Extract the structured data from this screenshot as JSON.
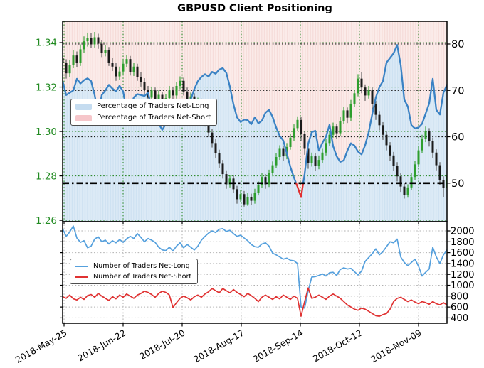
{
  "title": "GBPUSD Client Positioning",
  "colors": {
    "price_axis_green": "#228b22",
    "grid_green": "#2e8b2e",
    "grid_black": "#1a1a1a",
    "grid_gray": "#b0b0b0",
    "candle_up": "#2e9e2e",
    "candle_down": "#1b1b1b",
    "candle_down_wick": "#555555",
    "pct_line_blue": "#3a82c4",
    "pct_line_below50_red": "#e03030",
    "net_long_fill": "#dceaf6",
    "net_long_fill_stripe": "#cde1f1",
    "net_short_fill": "#fbebe9",
    "net_short_fill_stripe": "#f5dbd8",
    "count_long_line": "#55a0dd",
    "count_short_line": "#e03232",
    "threshold_line": "#000000"
  },
  "top_legend": {
    "items": [
      {
        "label": "Percentage of Traders Net-Long",
        "swatch_color": "#c5dcf0"
      },
      {
        "label": "Percentage of Traders Net-Short",
        "swatch_color": "#f6c6ca"
      }
    ]
  },
  "bottom_legend": {
    "items": [
      {
        "label": "Number of Traders Net-Long",
        "line_color": "#55a0dd"
      },
      {
        "label": "Number of Traders Net-Short",
        "line_color": "#e03232"
      }
    ]
  },
  "chart_data": {
    "type": "mixed",
    "x_axis": {
      "tick_labels": [
        "2018-May-25",
        "2018-Jun-22",
        "2018-Jul-20",
        "2018-Aug-17",
        "2018-Sep-14",
        "2018-Oct-12",
        "2018-Nov-09"
      ],
      "tick_positions": [
        0.0037,
        0.1574,
        0.3111,
        0.4648,
        0.6185,
        0.7722,
        0.9259
      ]
    },
    "top_panel": {
      "type": "candlestick_with_line",
      "price_axis": {
        "side": "left",
        "tick_labels": [
          "1.34",
          "1.32",
          "1.30",
          "1.28",
          "1.26"
        ],
        "tick_values": [
          1.34,
          1.32,
          1.3,
          1.28,
          1.26
        ],
        "range": [
          1.2594,
          1.3496
        ]
      },
      "pct_axis": {
        "side": "right",
        "tick_labels": [
          "80",
          "70",
          "60",
          "50"
        ],
        "tick_values": [
          80,
          70,
          60,
          50
        ],
        "range": [
          41.7,
          84.9
        ]
      },
      "threshold": 50,
      "candles": [
        [
          1.3332,
          1.3352,
          1.3282,
          1.3308
        ],
        [
          1.3308,
          1.3325,
          1.3238,
          1.3262
        ],
        [
          1.3262,
          1.3322,
          1.3245,
          1.33
        ],
        [
          1.33,
          1.3368,
          1.3285,
          1.3342
        ],
        [
          1.3342,
          1.336,
          1.3288,
          1.331
        ],
        [
          1.331,
          1.3392,
          1.3295,
          1.337
        ],
        [
          1.337,
          1.3428,
          1.3355,
          1.3406
        ],
        [
          1.3406,
          1.3445,
          1.3382,
          1.342
        ],
        [
          1.342,
          1.3442,
          1.3375,
          1.3392
        ],
        [
          1.3392,
          1.3448,
          1.3378,
          1.3424
        ],
        [
          1.3424,
          1.344,
          1.3372,
          1.3395
        ],
        [
          1.3395,
          1.3412,
          1.3335,
          1.3352
        ],
        [
          1.3352,
          1.339,
          1.3338,
          1.3368
        ],
        [
          1.3368,
          1.338,
          1.3295,
          1.331
        ],
        [
          1.331,
          1.3332,
          1.3272,
          1.3292
        ],
        [
          1.3292,
          1.3308,
          1.3228,
          1.3248
        ],
        [
          1.3248,
          1.3292,
          1.3232,
          1.327
        ],
        [
          1.327,
          1.3325,
          1.3255,
          1.3305
        ],
        [
          1.3305,
          1.3345,
          1.329,
          1.3326
        ],
        [
          1.3326,
          1.334,
          1.3252,
          1.3268
        ],
        [
          1.3268,
          1.331,
          1.325,
          1.3292
        ],
        [
          1.3292,
          1.3305,
          1.3228,
          1.3245
        ],
        [
          1.3245,
          1.3268,
          1.3202,
          1.3222
        ],
        [
          1.3222,
          1.324,
          1.3168,
          1.3188
        ],
        [
          1.3188,
          1.3205,
          1.3132,
          1.3152
        ],
        [
          1.3152,
          1.3202,
          1.3138,
          1.3185
        ],
        [
          1.3185,
          1.3198,
          1.312,
          1.314
        ],
        [
          1.314,
          1.3185,
          1.3125,
          1.3165
        ],
        [
          1.3165,
          1.3178,
          1.3098,
          1.312
        ],
        [
          1.312,
          1.3168,
          1.3105,
          1.315
        ],
        [
          1.315,
          1.3205,
          1.3135,
          1.3185
        ],
        [
          1.3185,
          1.3202,
          1.3142,
          1.3162
        ],
        [
          1.3162,
          1.3222,
          1.3148,
          1.3205
        ],
        [
          1.3205,
          1.3248,
          1.319,
          1.3228
        ],
        [
          1.3228,
          1.3242,
          1.3162,
          1.318
        ],
        [
          1.318,
          1.3198,
          1.3112,
          1.3132
        ],
        [
          1.3132,
          1.3175,
          1.3118,
          1.3158
        ],
        [
          1.3158,
          1.3172,
          1.3088,
          1.3108
        ],
        [
          1.3108,
          1.3152,
          1.3092,
          1.3135
        ],
        [
          1.3135,
          1.3148,
          1.3068,
          1.3088
        ],
        [
          1.3088,
          1.3102,
          1.3022,
          1.3042
        ],
        [
          1.3042,
          1.3058,
          1.2975,
          1.2995
        ],
        [
          1.2995,
          1.3012,
          1.2928,
          1.2948
        ],
        [
          1.2948,
          1.2965,
          1.2882,
          1.2902
        ],
        [
          1.2902,
          1.2918,
          1.2835,
          1.2855
        ],
        [
          1.2855,
          1.2872,
          1.2788,
          1.2808
        ],
        [
          1.2808,
          1.2825,
          1.2742,
          1.2762
        ],
        [
          1.2762,
          1.2805,
          1.2748,
          1.2788
        ],
        [
          1.2788,
          1.2802,
          1.2722,
          1.274
        ],
        [
          1.274,
          1.2755,
          1.2675,
          1.2695
        ],
        [
          1.2695,
          1.2738,
          1.2682,
          1.2718
        ],
        [
          1.2718,
          1.2732,
          1.2662,
          1.2672
        ],
        [
          1.2672,
          1.2722,
          1.2665,
          1.2706
        ],
        [
          1.2706,
          1.272,
          1.2668,
          1.2688
        ],
        [
          1.2688,
          1.2742,
          1.2675,
          1.2725
        ],
        [
          1.2725,
          1.2775,
          1.2712,
          1.2758
        ],
        [
          1.2758,
          1.2812,
          1.2745,
          1.2795
        ],
        [
          1.2795,
          1.2808,
          1.2742,
          1.2762
        ],
        [
          1.2762,
          1.2828,
          1.275,
          1.2812
        ],
        [
          1.2812,
          1.2865,
          1.2798,
          1.2848
        ],
        [
          1.2848,
          1.2902,
          1.2835,
          1.2885
        ],
        [
          1.2885,
          1.2938,
          1.2872,
          1.2922
        ],
        [
          1.2922,
          1.2935,
          1.2868,
          1.2888
        ],
        [
          1.2888,
          1.2948,
          1.2875,
          1.293
        ],
        [
          1.293,
          1.2988,
          1.2918,
          1.2972
        ],
        [
          1.2972,
          1.3032,
          1.2958,
          1.3015
        ],
        [
          1.3015,
          1.3068,
          1.3002,
          1.3052
        ],
        [
          1.3052,
          1.3065,
          1.2958,
          1.2988
        ],
        [
          1.2988,
          1.3002,
          1.2895,
          1.2922
        ],
        [
          1.2922,
          1.2938,
          1.2832,
          1.2858
        ],
        [
          1.2858,
          1.2905,
          1.2842,
          1.2888
        ],
        [
          1.2888,
          1.2902,
          1.2822,
          1.2846
        ],
        [
          1.2846,
          1.2892,
          1.283,
          1.2872
        ],
        [
          1.2872,
          1.2922,
          1.2858,
          1.2905
        ],
        [
          1.2905,
          1.2965,
          1.2892,
          1.2948
        ],
        [
          1.2948,
          1.3002,
          1.2935,
          1.2985
        ],
        [
          1.2985,
          1.304,
          1.2972,
          1.3022
        ],
        [
          1.3022,
          1.3035,
          1.2968,
          1.2992
        ],
        [
          1.2992,
          1.3065,
          1.298,
          1.3048
        ],
        [
          1.3048,
          1.3112,
          1.3035,
          1.3095
        ],
        [
          1.3095,
          1.3108,
          1.3038,
          1.3062
        ],
        [
          1.3062,
          1.3142,
          1.3048,
          1.3125
        ],
        [
          1.3125,
          1.3188,
          1.3112,
          1.3172
        ],
        [
          1.3172,
          1.3258,
          1.3158,
          1.3238
        ],
        [
          1.3238,
          1.3266,
          1.3172,
          1.3198
        ],
        [
          1.3198,
          1.3212,
          1.3138,
          1.3162
        ],
        [
          1.3162,
          1.3205,
          1.3148,
          1.3185
        ],
        [
          1.3185,
          1.3198,
          1.3098,
          1.3122
        ],
        [
          1.3122,
          1.3138,
          1.3052,
          1.3075
        ],
        [
          1.3075,
          1.3092,
          1.3005,
          1.3028
        ],
        [
          1.3028,
          1.3042,
          1.2962,
          1.2985
        ],
        [
          1.2985,
          1.3,
          1.2915,
          1.2938
        ],
        [
          1.2938,
          1.2952,
          1.2868,
          1.2892
        ],
        [
          1.2892,
          1.2908,
          1.2822,
          1.2845
        ],
        [
          1.2845,
          1.2862,
          1.2775,
          1.2798
        ],
        [
          1.2798,
          1.2812,
          1.2728,
          1.2752
        ],
        [
          1.2752,
          1.2768,
          1.2698,
          1.2715
        ],
        [
          1.2715,
          1.2762,
          1.2702,
          1.2748
        ],
        [
          1.2748,
          1.2812,
          1.2735,
          1.2795
        ],
        [
          1.2795,
          1.2868,
          1.2782,
          1.2852
        ],
        [
          1.2852,
          1.2932,
          1.284,
          1.2915
        ],
        [
          1.2915,
          1.2985,
          1.2902,
          1.2968
        ],
        [
          1.2968,
          1.3022,
          1.2952,
          1.3002
        ],
        [
          1.3002,
          1.3015,
          1.2932,
          1.2958
        ],
        [
          1.2958,
          1.2972,
          1.2882,
          1.2905
        ],
        [
          1.2905,
          1.292,
          1.2825,
          1.2848
        ],
        [
          1.2848,
          1.2862,
          1.2758,
          1.2782
        ],
        [
          1.2782,
          1.2798,
          1.2705,
          1.2745
        ],
        [
          1.2745,
          1.2825,
          1.2728,
          1.2802
        ]
      ],
      "pct_net_long": [
        72,
        69,
        69.5,
        70,
        72.5,
        71.5,
        72.2,
        72.6,
        72,
        69,
        64.8,
        69,
        70,
        71.2,
        70.4,
        69.8,
        71,
        69.8,
        65.5,
        66,
        68.5,
        69.2,
        69,
        68.8,
        69.5,
        66.5,
        64.5,
        62.8,
        61.5,
        62.8,
        64.5,
        66,
        64.5,
        64.8,
        64.6,
        65.8,
        68,
        70.3,
        72,
        72.9,
        73.5,
        73,
        74,
        73.6,
        74.5,
        74.8,
        73.8,
        70.8,
        67,
        64.2,
        63.2,
        63.7,
        63.6,
        62.7,
        64.2,
        62.9,
        63.5,
        65.2,
        65.8,
        64.3,
        62,
        60.2,
        59.2,
        56.4,
        53.5,
        51.2,
        49.2,
        47,
        52,
        58.5,
        61,
        61.3,
        57,
        58.7,
        60,
        62.6,
        58,
        55.8,
        54.6,
        54.9,
        57,
        58.6,
        58.1,
        56.8,
        56.2,
        58.2,
        61,
        64.9,
        68.5,
        70.7,
        72,
        76,
        77,
        78,
        79.8,
        75.5,
        68,
        66.5,
        62.5,
        61.8,
        62,
        62.8,
        65,
        67.2,
        72.5,
        65.8,
        64.8,
        69.5,
        71.2
      ]
    },
    "bottom_panel": {
      "type": "line",
      "count_axis": {
        "side": "right",
        "tick_labels": [
          "2000",
          "1800",
          "1600",
          "1400",
          "1200",
          "1000",
          "800",
          "600",
          "400"
        ],
        "tick_values": [
          2000,
          1800,
          1600,
          1400,
          1200,
          1000,
          800,
          600,
          400
        ],
        "range": [
          301,
          2170
        ]
      },
      "net_long": [
        2040,
        1900,
        1980,
        2090,
        1870,
        1790,
        1820,
        1690,
        1720,
        1850,
        1890,
        1800,
        1830,
        1760,
        1820,
        1780,
        1840,
        1790,
        1855,
        1900,
        1860,
        1950,
        1880,
        1800,
        1860,
        1830,
        1790,
        1700,
        1650,
        1640,
        1700,
        1630,
        1720,
        1780,
        1690,
        1750,
        1700,
        1650,
        1720,
        1830,
        1900,
        1960,
        2000,
        1970,
        2030,
        2040,
        1990,
        2010,
        1950,
        1900,
        1920,
        1870,
        1820,
        1750,
        1710,
        1700,
        1760,
        1780,
        1720,
        1590,
        1560,
        1520,
        1480,
        1500,
        1460,
        1450,
        1400,
        600,
        580,
        900,
        1150,
        1160,
        1180,
        1210,
        1170,
        1230,
        1240,
        1180,
        1290,
        1320,
        1300,
        1310,
        1250,
        1190,
        1260,
        1440,
        1510,
        1580,
        1670,
        1560,
        1620,
        1710,
        1800,
        1780,
        1850,
        1520,
        1420,
        1360,
        1420,
        1480,
        1350,
        1170,
        1240,
        1300,
        1700,
        1520,
        1400,
        1560,
        1650
      ],
      "net_short": [
        790,
        760,
        820,
        750,
        730,
        780,
        740,
        810,
        830,
        780,
        850,
        800,
        760,
        720,
        790,
        750,
        820,
        780,
        840,
        800,
        760,
        820,
        850,
        890,
        870,
        830,
        780,
        850,
        890,
        870,
        820,
        590,
        680,
        760,
        800,
        770,
        730,
        790,
        820,
        780,
        840,
        880,
        940,
        900,
        860,
        940,
        900,
        860,
        920,
        870,
        830,
        790,
        850,
        810,
        760,
        700,
        780,
        820,
        780,
        740,
        790,
        750,
        820,
        780,
        740,
        800,
        760,
        430,
        700,
        950,
        760,
        780,
        820,
        780,
        740,
        800,
        840,
        800,
        760,
        700,
        640,
        600,
        560,
        540,
        580,
        560,
        520,
        480,
        440,
        430,
        460,
        480,
        560,
        700,
        760,
        780,
        740,
        700,
        730,
        690,
        660,
        700,
        680,
        650,
        700,
        660,
        640,
        680,
        640
      ]
    }
  }
}
